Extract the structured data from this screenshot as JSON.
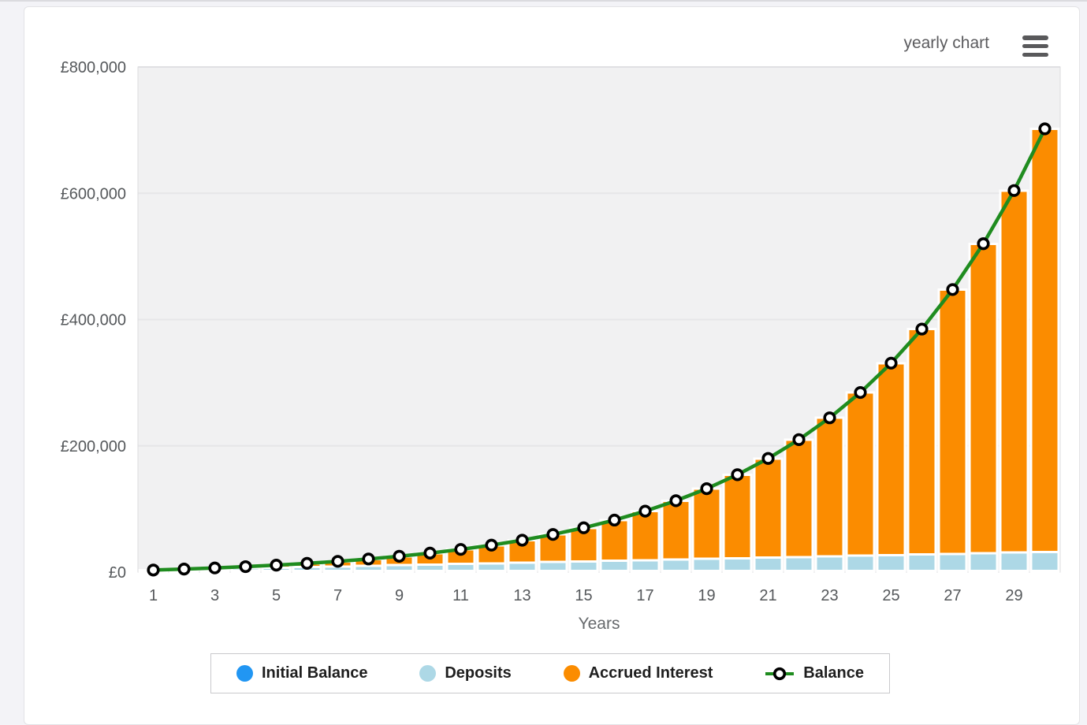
{
  "header": {
    "chart_type_label": "yearly chart"
  },
  "chart_data": {
    "type": "bar",
    "subtype": "stacked-bars-with-balance-line",
    "title": "yearly chart",
    "xlabel": "Years",
    "ylabel": "",
    "years": [
      1,
      2,
      3,
      4,
      5,
      6,
      7,
      8,
      9,
      10,
      11,
      12,
      13,
      14,
      15,
      16,
      17,
      18,
      19,
      20,
      21,
      22,
      23,
      24,
      25,
      26,
      27,
      28,
      29,
      30
    ],
    "x_tick_years": [
      1,
      3,
      5,
      7,
      9,
      11,
      13,
      15,
      17,
      19,
      21,
      23,
      25,
      27,
      29
    ],
    "y_ticks": [
      0,
      200000,
      400000,
      600000,
      800000
    ],
    "y_tick_labels": [
      "£0",
      "£200,000",
      "£400,000",
      "£600,000",
      "£800,000"
    ],
    "ylim": [
      0,
      800000
    ],
    "grid": "horizontal",
    "legend_position": "bottom",
    "plot_bg_color": "#F1F1F2",
    "grid_color": "#E6E6E8",
    "bar_series": [
      {
        "name": "Initial Balance",
        "color": "#2196F3",
        "values": [
          2000,
          2000,
          2000,
          2000,
          2000,
          2000,
          2000,
          2000,
          2000,
          2000,
          2000,
          2000,
          2000,
          2000,
          2000,
          2000,
          2000,
          2000,
          2000,
          2000,
          2000,
          2000,
          2000,
          2000,
          2000,
          2000,
          2000,
          2000,
          2000,
          2000
        ]
      },
      {
        "name": "Deposits",
        "color": "#ADD8E6",
        "values": [
          1000,
          2000,
          3000,
          4000,
          5000,
          6000,
          7000,
          8000,
          9000,
          10000,
          11000,
          12000,
          13000,
          14000,
          15000,
          16000,
          17000,
          18000,
          19000,
          20000,
          21000,
          22000,
          23000,
          24000,
          25000,
          26000,
          27000,
          28000,
          29000,
          30000
        ]
      },
      {
        "name": "Accrued Interest",
        "color": "#FB8C00",
        "values": [
          320,
          851,
          1627,
          2688,
          4078,
          5850,
          8066,
          10797,
          14124,
          18144,
          22967,
          28722,
          35558,
          43647,
          53191,
          64421,
          77608,
          93066,
          111156,
          132301,
          156989,
          185788,
          219354,
          258450,
          303963,
          356917,
          418503,
          490104,
          573320,
          670012
        ]
      }
    ],
    "line_series": {
      "name": "Balance",
      "color": "#1F8C1F",
      "marker_fill": "#FFFFFF",
      "marker_stroke": "#000000",
      "values": [
        3320,
        4851,
        6627,
        8688,
        11078,
        13850,
        17066,
        20797,
        25124,
        30144,
        35967,
        42722,
        50558,
        59647,
        70191,
        82421,
        96608,
        113066,
        132156,
        154301,
        179989,
        209788,
        244354,
        284450,
        330963,
        384917,
        447503,
        520104,
        604320,
        702012
      ]
    }
  }
}
